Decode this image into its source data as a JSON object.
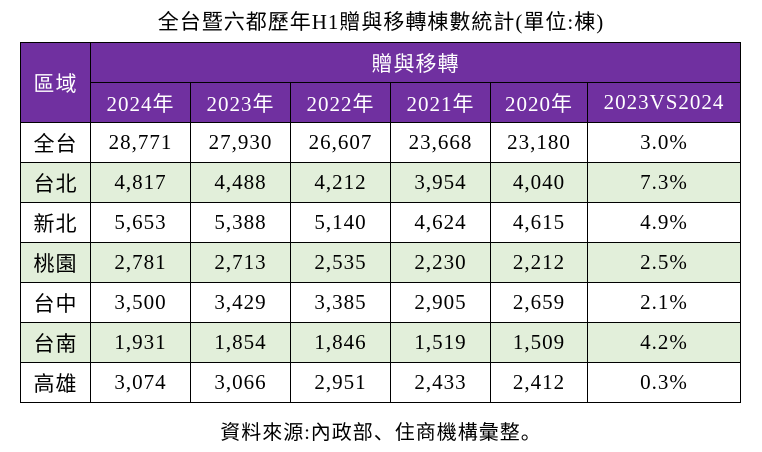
{
  "title": "全台暨六都歷年H1贈與移轉棟數統計(單位:棟)",
  "table": {
    "header": {
      "region": "區域",
      "group": "贈與移轉",
      "columns": [
        "2024年",
        "2023年",
        "2022年",
        "2021年",
        "2020年",
        "2023VS2024"
      ]
    },
    "rows": [
      [
        "全台",
        "28,771",
        "27,930",
        "26,607",
        "23,668",
        "23,180",
        "3.0%"
      ],
      [
        "台北",
        "4,817",
        "4,488",
        "4,212",
        "3,954",
        "4,040",
        "7.3%"
      ],
      [
        "新北",
        "5,653",
        "5,388",
        "5,140",
        "4,624",
        "4,615",
        "4.9%"
      ],
      [
        "桃園",
        "2,781",
        "2,713",
        "2,535",
        "2,230",
        "2,212",
        "2.5%"
      ],
      [
        "台中",
        "3,500",
        "3,429",
        "3,385",
        "2,905",
        "2,659",
        "2.1%"
      ],
      [
        "台南",
        "1,931",
        "1,854",
        "1,846",
        "1,519",
        "1,509",
        "4.2%"
      ],
      [
        "高雄",
        "3,074",
        "3,066",
        "2,951",
        "2,433",
        "2,412",
        "0.3%"
      ]
    ]
  },
  "source": "資料來源:內政部、住商機構彙整。"
}
